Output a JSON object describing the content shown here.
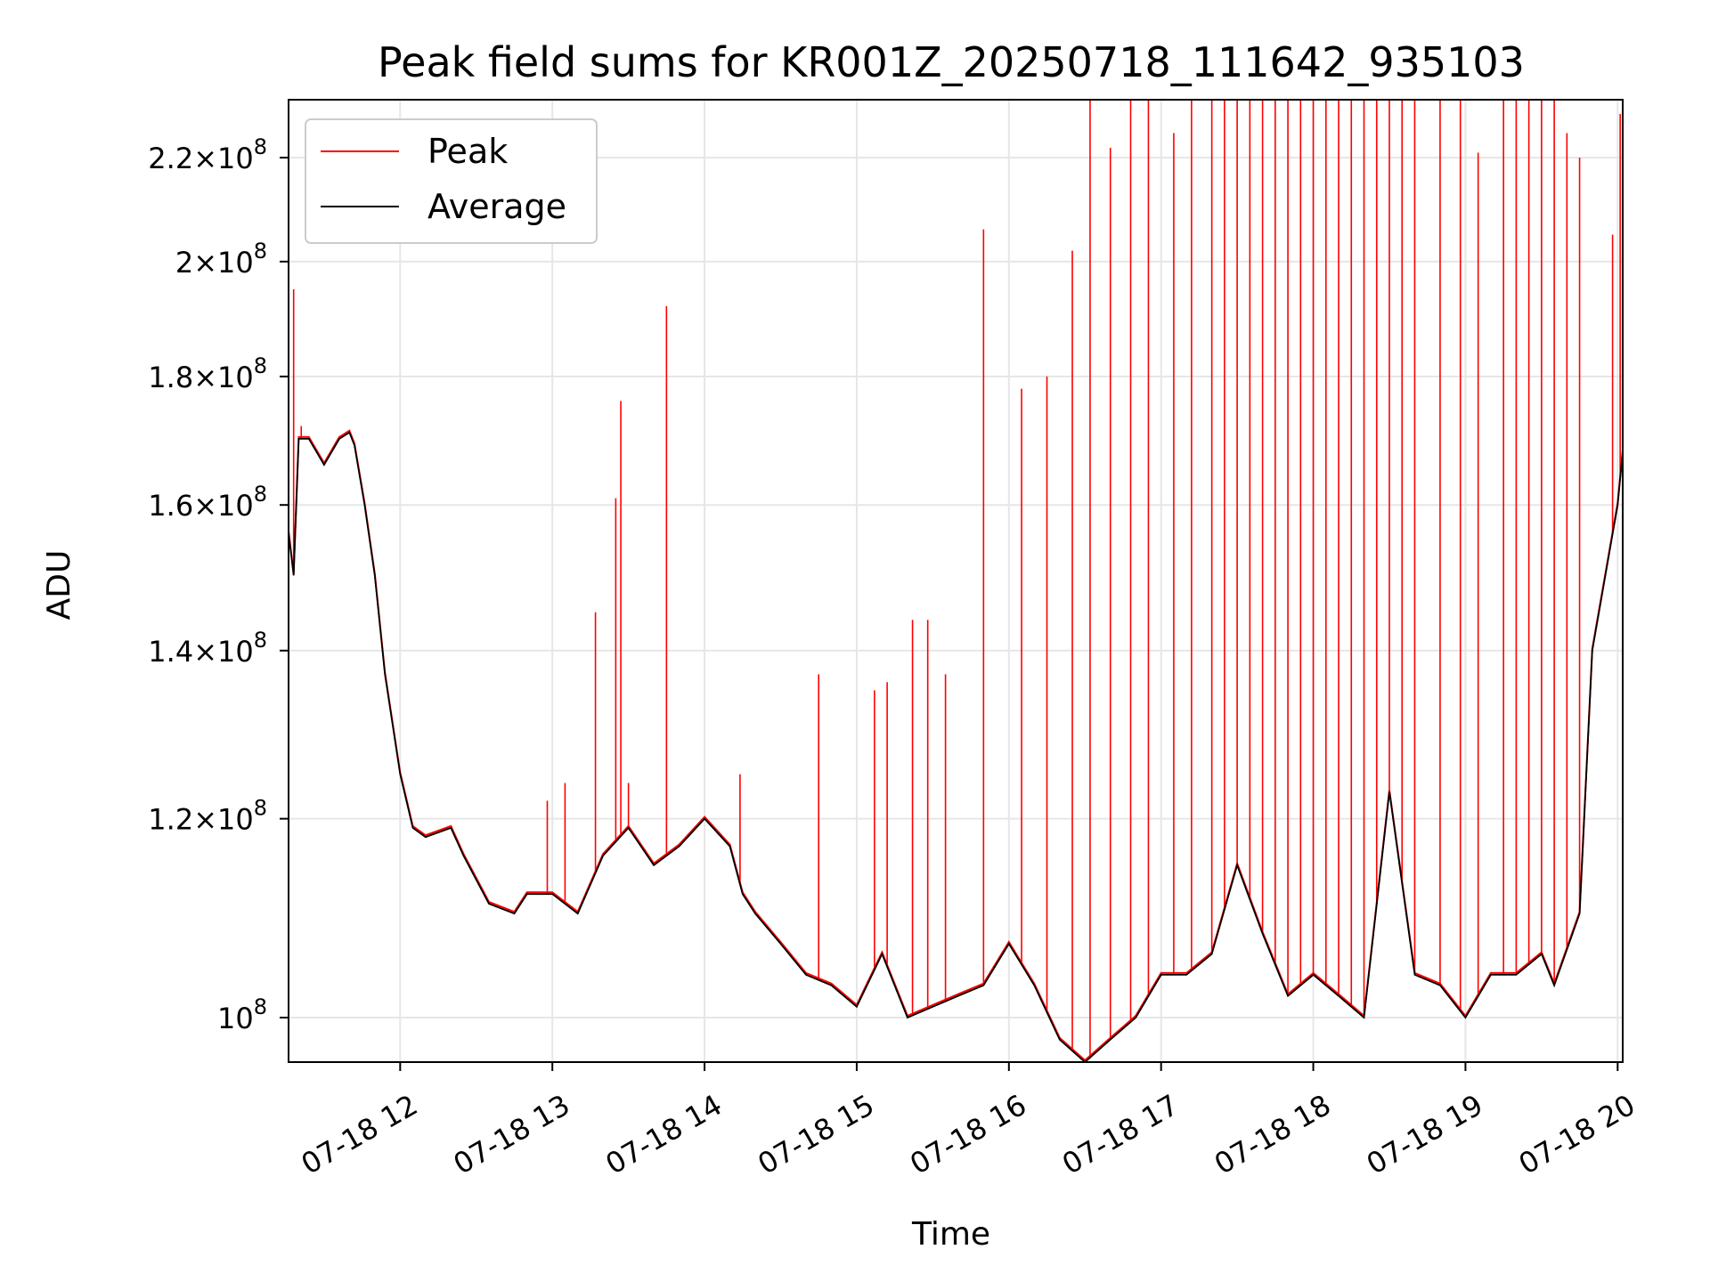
{
  "chart_data": {
    "type": "line",
    "title": "Peak field sums for KR001Z_20250718_111642_935103",
    "xlabel": "Time",
    "ylabel": "ADU",
    "y_scale": "log",
    "grid": true,
    "legend_position": "top-left",
    "xlim": [
      "2025-07-18 11:16",
      "2025-07-18 20:02"
    ],
    "ylim": [
      96000000,
      232000000
    ],
    "x_ticks": [
      {
        "value": "2025-07-18 12:00",
        "label": "07-18 12"
      },
      {
        "value": "2025-07-18 13:00",
        "label": "07-18 13"
      },
      {
        "value": "2025-07-18 14:00",
        "label": "07-18 14"
      },
      {
        "value": "2025-07-18 15:00",
        "label": "07-18 15"
      },
      {
        "value": "2025-07-18 16:00",
        "label": "07-18 16"
      },
      {
        "value": "2025-07-18 17:00",
        "label": "07-18 17"
      },
      {
        "value": "2025-07-18 18:00",
        "label": "07-18 18"
      },
      {
        "value": "2025-07-18 19:00",
        "label": "07-18 19"
      },
      {
        "value": "2025-07-18 20:00",
        "label": "07-18 20"
      }
    ],
    "y_ticks": [
      {
        "value": 100000000,
        "mantissa": "",
        "exponent": "8"
      },
      {
        "value": 120000000,
        "mantissa": "1.2",
        "exponent": "8"
      },
      {
        "value": 140000000,
        "mantissa": "1.4",
        "exponent": "8"
      },
      {
        "value": 160000000,
        "mantissa": "1.6",
        "exponent": "8"
      },
      {
        "value": 180000000,
        "mantissa": "1.8",
        "exponent": "8"
      },
      {
        "value": 200000000,
        "mantissa": "2",
        "exponent": "8"
      },
      {
        "value": 220000000,
        "mantissa": "2.2",
        "exponent": "8"
      }
    ],
    "series": [
      {
        "name": "Average",
        "color": "#000000",
        "x": [
          "2025-07-18 11:16",
          "2025-07-18 11:18",
          "2025-07-18 11:20",
          "2025-07-18 11:24",
          "2025-07-18 11:30",
          "2025-07-18 11:36",
          "2025-07-18 11:40",
          "2025-07-18 11:42",
          "2025-07-18 11:46",
          "2025-07-18 11:50",
          "2025-07-18 11:54",
          "2025-07-18 12:00",
          "2025-07-18 12:05",
          "2025-07-18 12:10",
          "2025-07-18 12:20",
          "2025-07-18 12:25",
          "2025-07-18 12:35",
          "2025-07-18 12:45",
          "2025-07-18 12:50",
          "2025-07-18 13:00",
          "2025-07-18 13:10",
          "2025-07-18 13:20",
          "2025-07-18 13:30",
          "2025-07-18 13:40",
          "2025-07-18 13:50",
          "2025-07-18 14:00",
          "2025-07-18 14:10",
          "2025-07-18 14:15",
          "2025-07-18 14:20",
          "2025-07-18 14:30",
          "2025-07-18 14:40",
          "2025-07-18 14:50",
          "2025-07-18 15:00",
          "2025-07-18 15:10",
          "2025-07-18 15:20",
          "2025-07-18 15:30",
          "2025-07-18 15:40",
          "2025-07-18 15:50",
          "2025-07-18 16:00",
          "2025-07-18 16:10",
          "2025-07-18 16:20",
          "2025-07-18 16:30",
          "2025-07-18 16:40",
          "2025-07-18 16:50",
          "2025-07-18 17:00",
          "2025-07-18 17:10",
          "2025-07-18 17:20",
          "2025-07-18 17:30",
          "2025-07-18 17:40",
          "2025-07-18 17:50",
          "2025-07-18 18:00",
          "2025-07-18 18:10",
          "2025-07-18 18:20",
          "2025-07-18 18:30",
          "2025-07-18 18:40",
          "2025-07-18 18:50",
          "2025-07-18 19:00",
          "2025-07-18 19:10",
          "2025-07-18 19:20",
          "2025-07-18 19:30",
          "2025-07-18 19:35",
          "2025-07-18 19:45",
          "2025-07-18 19:50",
          "2025-07-18 20:00",
          "2025-07-18 20:02"
        ],
        "values": [
          156000000,
          150000000,
          170000000,
          170000000,
          166000000,
          170000000,
          171000000,
          169000000,
          160000000,
          150000000,
          137000000,
          125000000,
          119000000,
          118000000,
          119000000,
          116000000,
          111000000,
          110000000,
          112000000,
          112000000,
          110000000,
          116000000,
          119000000,
          115000000,
          117000000,
          120000000,
          117000000,
          112000000,
          110000000,
          107000000,
          104000000,
          103000000,
          101000000,
          106000000,
          100000000,
          101000000,
          102000000,
          103000000,
          107000000,
          103000000,
          98000000,
          96000000,
          98000000,
          100000000,
          104000000,
          104000000,
          106000000,
          115000000,
          108000000,
          102000000,
          104000000,
          102000000,
          100000000,
          123000000,
          104000000,
          103000000,
          100000000,
          104000000,
          104000000,
          106000000,
          103000000,
          110000000,
          140000000,
          160000000,
          168000000
        ]
      },
      {
        "name": "Peak",
        "color": "#ff0000",
        "x": [
          "2025-07-18 11:18",
          "2025-07-18 11:21",
          "2025-07-18 12:58",
          "2025-07-18 13:05",
          "2025-07-18 13:17",
          "2025-07-18 13:25",
          "2025-07-18 13:27",
          "2025-07-18 13:30",
          "2025-07-18 13:45",
          "2025-07-18 14:14",
          "2025-07-18 14:45",
          "2025-07-18 15:07",
          "2025-07-18 15:12",
          "2025-07-18 15:22",
          "2025-07-18 15:28",
          "2025-07-18 15:35",
          "2025-07-18 15:50",
          "2025-07-18 16:05",
          "2025-07-18 16:15",
          "2025-07-18 16:25",
          "2025-07-18 16:32",
          "2025-07-18 16:40",
          "2025-07-18 16:48",
          "2025-07-18 16:55",
          "2025-07-18 17:05",
          "2025-07-18 17:12",
          "2025-07-18 17:20",
          "2025-07-18 17:25",
          "2025-07-18 17:30",
          "2025-07-18 17:35",
          "2025-07-18 17:40",
          "2025-07-18 17:45",
          "2025-07-18 17:50",
          "2025-07-18 17:55",
          "2025-07-18 18:00",
          "2025-07-18 18:05",
          "2025-07-18 18:10",
          "2025-07-18 18:15",
          "2025-07-18 18:20",
          "2025-07-18 18:25",
          "2025-07-18 18:30",
          "2025-07-18 18:35",
          "2025-07-18 18:40",
          "2025-07-18 18:50",
          "2025-07-18 18:58",
          "2025-07-18 19:05",
          "2025-07-18 19:15",
          "2025-07-18 19:20",
          "2025-07-18 19:25",
          "2025-07-18 19:30",
          "2025-07-18 19:35",
          "2025-07-18 19:40",
          "2025-07-18 19:45",
          "2025-07-18 19:58",
          "2025-07-18 20:01"
        ],
        "values": [
          195000000,
          172000000,
          122000000,
          124000000,
          145000000,
          161000000,
          176000000,
          124000000,
          192000000,
          125000000,
          137000000,
          135000000,
          136000000,
          144000000,
          144000000,
          137000000,
          206000000,
          178000000,
          180000000,
          202000000,
          232000000,
          222000000,
          232000000,
          232000000,
          225000000,
          232000000,
          232000000,
          232000000,
          232000000,
          232000000,
          232000000,
          232000000,
          232000000,
          232000000,
          232000000,
          232000000,
          232000000,
          232000000,
          232000000,
          232000000,
          232000000,
          232000000,
          232000000,
          232000000,
          232000000,
          221000000,
          232000000,
          232000000,
          232000000,
          232000000,
          232000000,
          225000000,
          220000000,
          205000000,
          229000000
        ]
      }
    ]
  }
}
